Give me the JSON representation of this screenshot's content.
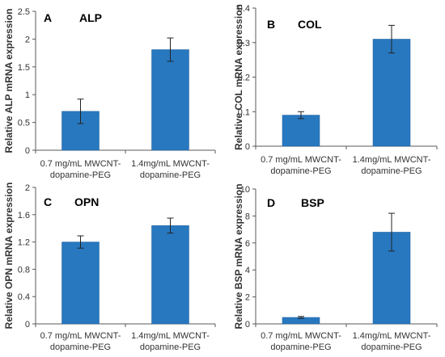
{
  "colors": {
    "bar": "#2878C0",
    "bar_edge": "#1F5F9A",
    "axis": "#595959"
  },
  "chart_data": [
    {
      "panel": "A",
      "type": "bar",
      "title": "ALP",
      "ylabel": "Relative ALP mRNA expression",
      "categories": [
        [
          "0.7 mg/mL MWCNT-",
          "dopamine-PEG"
        ],
        [
          "1.4mg/mL MWCNT-",
          "dopamine-PEG"
        ]
      ],
      "values": [
        0.7,
        1.81
      ],
      "errors": [
        0.22,
        0.21
      ],
      "ylim": [
        0,
        2.5
      ],
      "yticks": [
        "0",
        "0.5",
        "1",
        "1.5",
        "2",
        "2.5"
      ],
      "ytick_values": [
        0,
        0.5,
        1,
        1.5,
        2,
        2.5
      ],
      "grid": false
    },
    {
      "panel": "B",
      "type": "bar",
      "title": "COL",
      "ylabel": "Relative COL mRNA expression",
      "categories": [
        [
          "0.7 mg/mL MWCNT-",
          "dopamine-PEG"
        ],
        [
          "1.4mg/mL MWCNT-",
          "dopamine-PEG"
        ]
      ],
      "values": [
        0.09,
        0.31
      ],
      "errors": [
        0.01,
        0.04
      ],
      "ylim": [
        0,
        0.4
      ],
      "yticks": [
        "0",
        "0.1",
        "0.2",
        "0.3",
        "0.4"
      ],
      "ytick_values": [
        0,
        0.1,
        0.2,
        0.3,
        0.4
      ],
      "grid": false
    },
    {
      "panel": "C",
      "type": "bar",
      "title": "OPN",
      "ylabel": "Relative OPN mRNA expression",
      "categories": [
        [
          "0.7 mg/mL MWCNT-",
          "dopamine-PEG"
        ],
        [
          "1.4mg/mL MWCNT-",
          "dopamine-PEG"
        ]
      ],
      "values": [
        1.2,
        1.44
      ],
      "errors": [
        0.09,
        0.11
      ],
      "ylim": [
        0,
        2
      ],
      "yticks": [
        "0",
        "0.4",
        "0.8",
        "1.2",
        "1.6",
        "2"
      ],
      "ytick_values": [
        0,
        0.4,
        0.8,
        1.2,
        1.6,
        2
      ],
      "grid": false
    },
    {
      "panel": "D",
      "type": "bar",
      "title": "BSP",
      "ylabel": "Relative BSP mRNA expression",
      "categories": [
        [
          "0.7 mg/mL MWCNT-",
          "dopamine-PEG"
        ],
        [
          "1.4mg/mL MWCNT-",
          "dopamine-PEG"
        ]
      ],
      "values": [
        0.48,
        6.8
      ],
      "errors": [
        0.07,
        1.4
      ],
      "ylim": [
        0,
        10
      ],
      "yticks": [
        "0",
        "2",
        "4",
        "6",
        "8",
        "10"
      ],
      "ytick_values": [
        0,
        2,
        4,
        6,
        8,
        10
      ],
      "grid": false
    }
  ]
}
